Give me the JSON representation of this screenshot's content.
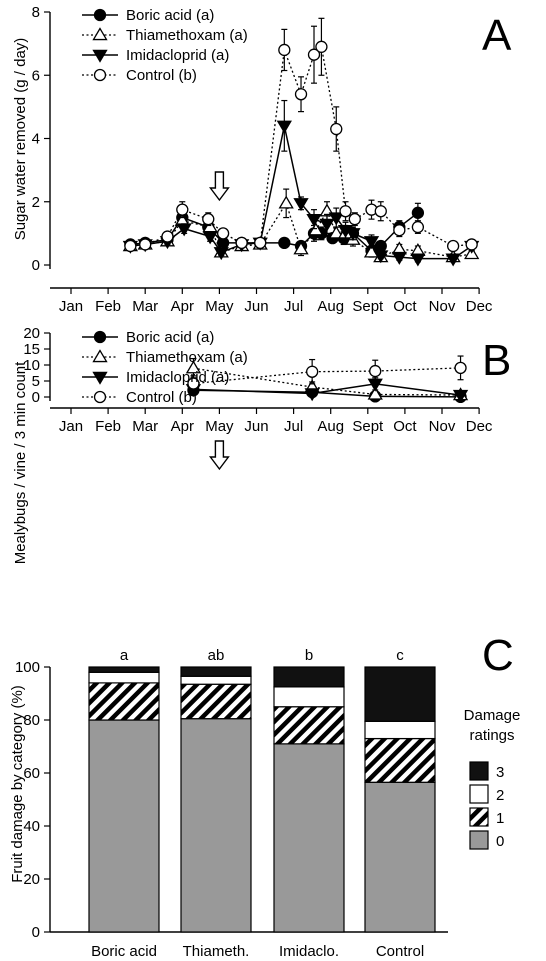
{
  "chart_data": [
    {
      "type": "line",
      "panel_letter": "A",
      "ylabel": "Sugar water removed (g / day)",
      "ylim": [
        0,
        8
      ],
      "yticks": [
        0,
        2,
        4,
        6,
        8
      ],
      "x_unit": "month",
      "xlim": [
        0,
        11
      ],
      "month_labels": [
        "Jan",
        "Feb",
        "Mar",
        "Apr",
        "May",
        "Jun",
        "Jul",
        "Aug",
        "Sept",
        "Oct",
        "Nov",
        "Dec"
      ],
      "arrow_at_month": 4.0,
      "legend_position": "top-left",
      "series": [
        {
          "name": "Boric acid (a)",
          "marker": "filled-circle",
          "line": "solid",
          "x": [
            1.6,
            2.0,
            2.6,
            3.0,
            3.7,
            4.1,
            4.6,
            5.1,
            5.75,
            6.2,
            6.55,
            6.75,
            7.05,
            7.35,
            7.6,
            8.1,
            8.35,
            8.85,
            9.35
          ],
          "y": [
            0.65,
            0.7,
            0.8,
            1.5,
            1.2,
            0.7,
            0.7,
            0.7,
            0.7,
            0.6,
            1.0,
            1.0,
            0.85,
            0.85,
            1.0,
            0.45,
            0.6,
            1.2,
            1.65
          ],
          "err": [
            0.1,
            0.1,
            0.1,
            0.2,
            0.2,
            0.1,
            0.1,
            0.1,
            0.15,
            0.1,
            0.25,
            0.2,
            0.15,
            0.2,
            0.2,
            0.15,
            0.15,
            0.2,
            0.3
          ]
        },
        {
          "name": "Thiamethoxam (a)",
          "marker": "open-triangle",
          "line": "dotted",
          "x": [
            1.6,
            2.0,
            2.6,
            3.0,
            3.75,
            4.05,
            4.6,
            5.1,
            5.8,
            6.2,
            6.6,
            6.9,
            7.15,
            7.4,
            7.6,
            8.1,
            8.35,
            8.85,
            9.35,
            10.3,
            10.8
          ],
          "y": [
            0.6,
            0.65,
            0.75,
            1.4,
            1.2,
            0.4,
            0.6,
            0.65,
            1.95,
            0.5,
            1.1,
            1.7,
            1.0,
            1.0,
            0.8,
            0.4,
            0.25,
            0.5,
            0.45,
            0.25,
            0.35
          ],
          "err": [
            0.1,
            0.1,
            0.1,
            0.2,
            0.15,
            0.1,
            0.1,
            0.1,
            0.45,
            0.2,
            0.3,
            0.3,
            0.2,
            0.25,
            0.2,
            0.15,
            0.1,
            0.15,
            0.15,
            0.1,
            0.1
          ]
        },
        {
          "name": "Imidacloprid (a)",
          "marker": "filled-down-triangle",
          "line": "solid",
          "x": [
            1.6,
            2.0,
            2.6,
            3.05,
            3.75,
            4.05,
            4.6,
            5.1,
            5.75,
            6.2,
            6.55,
            6.9,
            7.15,
            7.4,
            7.6,
            8.1,
            8.35,
            8.85,
            9.35,
            10.3,
            10.8
          ],
          "y": [
            0.6,
            0.65,
            0.75,
            1.15,
            0.9,
            0.4,
            0.65,
            0.7,
            4.4,
            1.95,
            1.45,
            1.3,
            1.5,
            1.1,
            1.0,
            0.75,
            0.3,
            0.25,
            0.2,
            0.2,
            0.6
          ],
          "err": [
            0.1,
            0.1,
            0.1,
            0.15,
            0.15,
            0.1,
            0.1,
            0.1,
            0.8,
            0.2,
            0.3,
            0.3,
            0.3,
            0.25,
            0.2,
            0.2,
            0.1,
            0.1,
            0.1,
            0.1,
            0.15
          ]
        },
        {
          "name": "Control (b)",
          "marker": "open-circle",
          "line": "dotted",
          "x": [
            1.6,
            2.0,
            2.6,
            3.0,
            3.7,
            4.1,
            4.6,
            5.1,
            5.75,
            6.2,
            6.55,
            6.75,
            7.15,
            7.4,
            7.65,
            8.1,
            8.35,
            8.85,
            9.35,
            10.3,
            10.8
          ],
          "y": [
            0.6,
            0.65,
            0.9,
            1.75,
            1.45,
            1.0,
            0.7,
            0.7,
            6.8,
            5.4,
            6.65,
            6.9,
            4.3,
            1.7,
            1.45,
            1.75,
            1.7,
            1.1,
            1.2,
            0.6,
            0.65
          ],
          "err": [
            0.1,
            0.1,
            0.1,
            0.25,
            0.2,
            0.15,
            0.1,
            0.1,
            0.65,
            0.55,
            0.9,
            0.9,
            0.7,
            0.3,
            0.2,
            0.3,
            0.3,
            0.2,
            0.2,
            0.15,
            0.15
          ]
        }
      ]
    },
    {
      "type": "line",
      "panel_letter": "B",
      "ylabel": "Mealybugs / vine / 3 min count",
      "ylim": [
        0,
        20
      ],
      "yticks": [
        0,
        5,
        10,
        15,
        20
      ],
      "x_unit": "month",
      "xlim": [
        0,
        11
      ],
      "month_labels": [
        "Jan",
        "Feb",
        "Mar",
        "Apr",
        "May",
        "Jun",
        "Jul",
        "Aug",
        "Sept",
        "Oct",
        "Nov",
        "Dec"
      ],
      "arrow_at_month": 4.0,
      "legend_position": "top-left",
      "series": [
        {
          "name": "Boric acid (a)",
          "marker": "filled-circle",
          "line": "solid",
          "x": [
            3.3,
            6.5,
            8.2,
            10.5
          ],
          "y": [
            2.1,
            1.5,
            0.2,
            0.05
          ],
          "err": [
            1.0,
            0.9,
            0.3,
            0.2
          ]
        },
        {
          "name": "Thiamethoxam (a)",
          "marker": "open-triangle",
          "line": "dotted",
          "x": [
            3.3,
            6.5,
            8.2,
            10.5
          ],
          "y": [
            9.0,
            3.1,
            0.8,
            0.6
          ],
          "err": [
            3.0,
            1.6,
            0.6,
            0.4
          ]
        },
        {
          "name": "Imidacloprid (a)",
          "marker": "filled-down-triangle",
          "line": "solid",
          "x": [
            3.3,
            6.5,
            8.2,
            10.5
          ],
          "y": [
            2.4,
            1.1,
            4.1,
            0.6
          ],
          "err": [
            0.8,
            0.6,
            1.9,
            0.3
          ]
        },
        {
          "name": "Control (b)",
          "marker": "open-circle",
          "line": "dotted",
          "x": [
            3.3,
            6.5,
            8.2,
            10.5
          ],
          "y": [
            4.2,
            7.9,
            8.1,
            9.1
          ],
          "err": [
            2.4,
            3.8,
            3.4,
            3.7
          ]
        }
      ]
    },
    {
      "type": "bar",
      "stacked": true,
      "panel_letter": "C",
      "ylabel": "Fruit damage by category (%)",
      "ylim": [
        0,
        100
      ],
      "yticks": [
        0,
        20,
        40,
        60,
        80,
        100
      ],
      "categories": [
        "Boric acid",
        "Thiameth.",
        "Imidaclo.",
        "Control"
      ],
      "group_letters": [
        "a",
        "ab",
        "b",
        "c"
      ],
      "legend_title": "Damage ratings",
      "legend_position": "right",
      "series": [
        {
          "name": "0",
          "fill": "gray",
          "values": [
            80,
            80.5,
            71,
            56.5
          ]
        },
        {
          "name": "1",
          "fill": "hatch",
          "values": [
            14,
            13,
            14,
            16.5
          ]
        },
        {
          "name": "2",
          "fill": "white",
          "values": [
            4,
            3,
            7.5,
            6.5
          ]
        },
        {
          "name": "3",
          "fill": "black",
          "values": [
            2,
            3.5,
            7.5,
            20.5
          ]
        }
      ]
    }
  ],
  "colors": {
    "gray": "#999999",
    "black": "#111111",
    "white": "#ffffff",
    "line": "#000000"
  }
}
